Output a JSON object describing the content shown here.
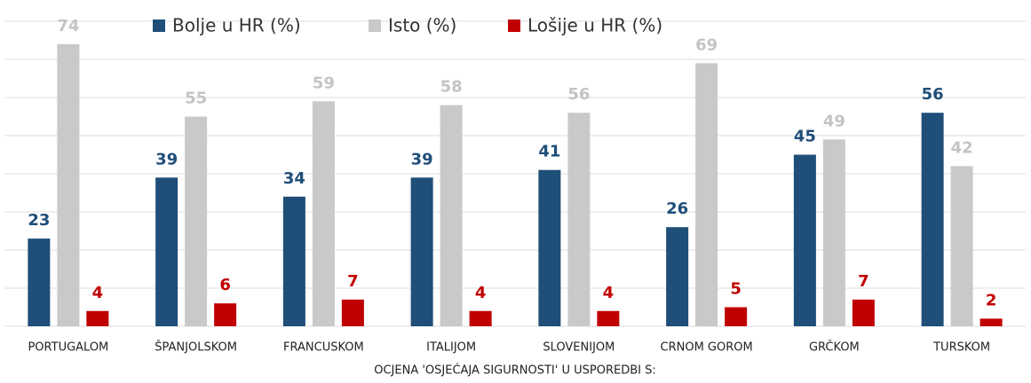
{
  "chart_data": {
    "type": "bar",
    "x_label": "OCJENA 'OSJEĆAJA SIGURNOSTI' U USPOREDBI S:",
    "categories": [
      "PORTUGALOM",
      "ŠPANJOLSKOM",
      "FRANCUSKOM",
      "ITALIJOM",
      "SLOVENIJOM",
      "CRNOM GOROM",
      "GRČKOM",
      "TURSKOM"
    ],
    "series": [
      {
        "name": "Bolje u HR (%)",
        "color": "#1f4e79",
        "values": [
          23,
          39,
          34,
          39,
          41,
          26,
          45,
          56
        ]
      },
      {
        "name": "Isto (%)",
        "color": "#c9c9c9",
        "values": [
          74,
          55,
          59,
          58,
          56,
          69,
          49,
          42
        ]
      },
      {
        "name": "Lošije u HR (%)",
        "color": "#c00000",
        "values": [
          4,
          6,
          7,
          4,
          4,
          5,
          7,
          2
        ]
      }
    ],
    "ylim": [
      0,
      80
    ],
    "yticks": [
      0,
      10,
      20,
      30,
      40,
      50,
      60,
      70,
      80
    ],
    "grid": true,
    "legend": "top"
  }
}
